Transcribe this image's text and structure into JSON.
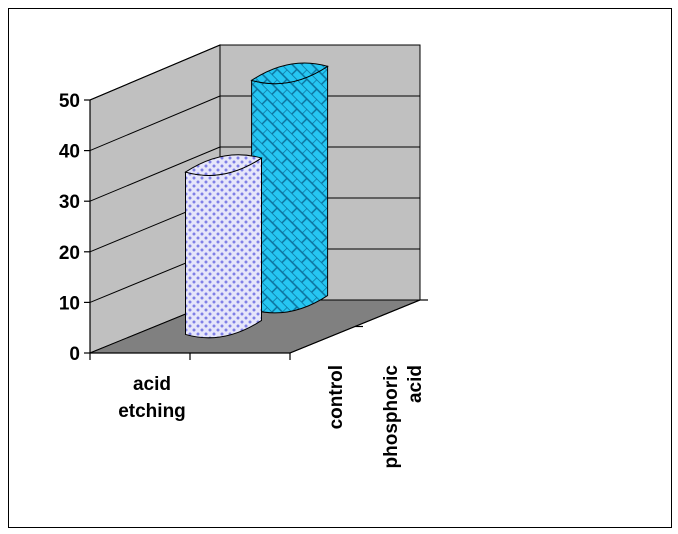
{
  "chart_data": {
    "type": "bar",
    "categories": [
      "acid\netching"
    ],
    "series": [
      {
        "name": "control",
        "values": [
          32
        ],
        "color": "#ccccf5",
        "pattern": "dots"
      },
      {
        "name": "phosphoric\nacid",
        "values": [
          45
        ],
        "color": "#26c6f2",
        "pattern": "brick"
      }
    ],
    "ylim": [
      0,
      50
    ],
    "yticks": [
      0,
      10,
      20,
      30,
      40,
      50
    ],
    "grid": true,
    "style": "3d-cylinder",
    "colors": {
      "wall": "#c0c0c0",
      "floor": "#808080"
    }
  }
}
